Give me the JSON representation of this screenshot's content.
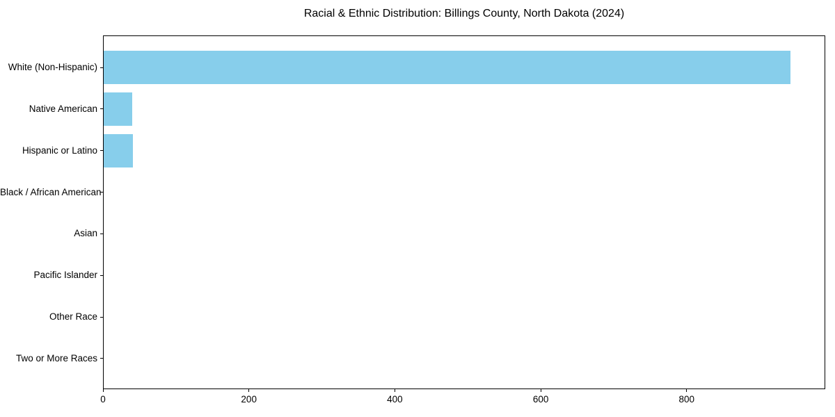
{
  "title": "Racial & Ethnic Distribution: Billings County, North Dakota (2024)",
  "chart_data": {
    "type": "bar",
    "orientation": "horizontal",
    "title": "Racial & Ethnic Distribution: Billings County, North Dakota (2024)",
    "xlabel": "",
    "ylabel": "",
    "categories": [
      "White (Non-Hispanic)",
      "Native American",
      "Hispanic or Latino",
      "Black / African American",
      "Asian",
      "Pacific Islander",
      "Other Race",
      "Two or More Races"
    ],
    "values": [
      942,
      40,
      41,
      0,
      0,
      0,
      0,
      0
    ],
    "xticks": [
      0,
      200,
      400,
      600,
      800
    ],
    "xlim": [
      0,
      990
    ],
    "bar_color": "#87CEEB",
    "background_color": "#FFFFFF",
    "spine_color": "#000000",
    "grid": false,
    "legend": null
  }
}
